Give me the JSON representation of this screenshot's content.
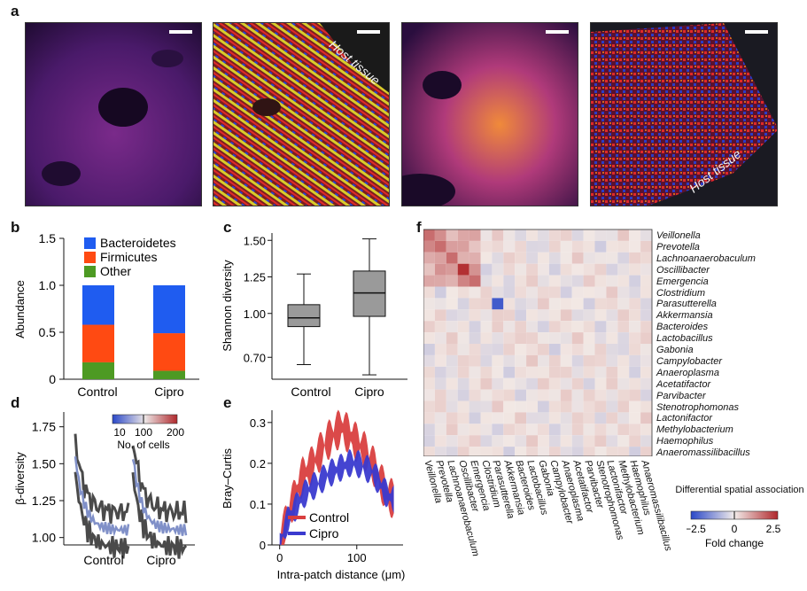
{
  "panels": {
    "a": "a",
    "b": "b",
    "c": "c",
    "d": "d",
    "e": "e",
    "f": "f"
  },
  "micro": {
    "host_tissue": "Host tissue"
  },
  "colors": {
    "bacteroidetes": "#1f5cf0",
    "firmicutes": "#ff4a12",
    "other": "#4d9a23",
    "control": "#d93f3f",
    "cipro": "#3a3acf",
    "box_fill": "#9a9a9a"
  },
  "chart_data": [
    {
      "id": "b",
      "type": "bar",
      "stacked": true,
      "ylabel": "Abundance",
      "ylim": [
        0,
        1.5
      ],
      "yticks": [
        "0",
        "0.5",
        "1.0",
        "1.5"
      ],
      "categories": [
        "Control",
        "Cipro"
      ],
      "series": [
        {
          "name": "Other",
          "values": [
            0.18,
            0.09
          ]
        },
        {
          "name": "Firmicutes",
          "values": [
            0.4,
            0.4
          ]
        },
        {
          "name": "Bacteroidetes",
          "values": [
            0.42,
            0.51
          ]
        }
      ],
      "legend": [
        "Bacteroidetes",
        "Firmicutes",
        "Other"
      ]
    },
    {
      "id": "c",
      "type": "box",
      "ylabel": "Shannon diversity",
      "ylim": [
        0.55,
        1.55
      ],
      "yticks": [
        "0.70",
        "1.00",
        "1.25",
        "1.50"
      ],
      "categories": [
        "Control",
        "Cipro"
      ],
      "boxes": [
        {
          "whislo": 0.65,
          "q1": 0.91,
          "med": 0.97,
          "q3": 1.06,
          "whishi": 1.27
        },
        {
          "whislo": 0.58,
          "q1": 0.98,
          "med": 1.14,
          "q3": 1.29,
          "whishi": 1.51
        }
      ]
    },
    {
      "id": "d",
      "type": "line",
      "ylabel": "β-diversity",
      "ylim": [
        0.95,
        1.85
      ],
      "yticks": [
        "1.00",
        "1.25",
        "1.50",
        "1.75"
      ],
      "categories": [
        "Control",
        "Cipro"
      ],
      "colorbar": {
        "ticks": [
          "10",
          "100",
          "200"
        ],
        "label": "No. of cells"
      }
    },
    {
      "id": "e",
      "type": "area",
      "ylabel": "Bray–Curtis",
      "xlabel": "Intra-patch distance (μm)",
      "xlim": [
        -10,
        160
      ],
      "ylim": [
        0,
        0.33
      ],
      "xticks": [
        "0",
        "100"
      ],
      "yticks": [
        "0",
        "0.1",
        "0.2",
        "0.3"
      ],
      "series": [
        {
          "name": "Control",
          "x": [
            0,
            10,
            20,
            30,
            40,
            50,
            60,
            70,
            80,
            90,
            100,
            110,
            120,
            130,
            140,
            150
          ],
          "values": [
            0.0,
            0.07,
            0.12,
            0.17,
            0.19,
            0.22,
            0.25,
            0.27,
            0.29,
            0.27,
            0.25,
            0.23,
            0.2,
            0.16,
            0.12,
            0.11
          ]
        },
        {
          "name": "Cipro",
          "x": [
            0,
            10,
            20,
            30,
            40,
            50,
            60,
            70,
            80,
            90,
            100,
            110,
            120,
            130,
            140,
            150
          ],
          "values": [
            0.0,
            0.06,
            0.09,
            0.12,
            0.14,
            0.15,
            0.17,
            0.18,
            0.19,
            0.2,
            0.2,
            0.19,
            0.18,
            0.15,
            0.12,
            0.11
          ]
        }
      ]
    },
    {
      "id": "f",
      "type": "heatmap",
      "legend_title": "Differential spatial association",
      "colorbar": {
        "ticks": [
          "−2.5",
          "0",
          "2.5"
        ],
        "label": "Fold change",
        "range": [
          -2.5,
          2.5
        ]
      },
      "genera": [
        "Veillonella",
        "Prevotella",
        "Lachnoanaerobaculum",
        "Oscillibacter",
        "Emergencia",
        "Clostridium",
        "Parasutterella",
        "Akkermansia",
        "Bacteroides",
        "Lactobacillus",
        "Gabonia",
        "Campylobacter",
        "Anaeroplasma",
        "Acetatifactor",
        "Parvibacter",
        "Stenotrophomonas",
        "Lactonifactor",
        "Methylobacterium",
        "Haemophilus",
        "Anaeromassilibacillus"
      ]
    }
  ]
}
